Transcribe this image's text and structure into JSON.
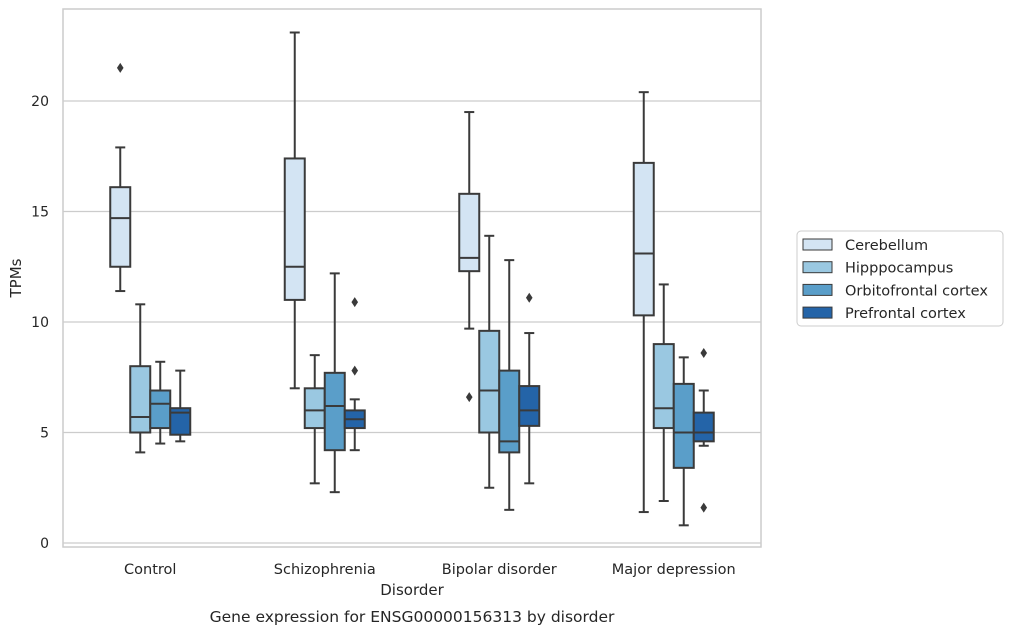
{
  "chart_data": {
    "type": "box",
    "title": "Gene expression for ENSG00000156313 by disorder",
    "xlabel": "Disorder",
    "ylabel": "TPMs",
    "categories": [
      "Control",
      "Schizophrenia",
      "Bipolar disorder",
      "Major depression"
    ],
    "yticks": [
      0,
      5,
      10,
      15,
      20
    ],
    "ylim": [
      -0.3,
      24.2
    ],
    "grid": "horizontal",
    "legend_position": "right",
    "series": [
      {
        "name": "Cerebellum",
        "color": "#d3e4f3",
        "boxes": [
          {
            "whisker_low": 11.4,
            "q1": 12.5,
            "median": 14.7,
            "q3": 16.1,
            "whisker_high": 17.9,
            "outliers": [
              21.5
            ]
          },
          {
            "whisker_low": 7.0,
            "q1": 11.0,
            "median": 12.5,
            "q3": 17.4,
            "whisker_high": 23.1,
            "outliers": []
          },
          {
            "whisker_low": 9.7,
            "q1": 12.3,
            "median": 12.9,
            "q3": 15.8,
            "whisker_high": 19.5,
            "outliers": [
              6.6
            ]
          },
          {
            "whisker_low": 1.4,
            "q1": 10.3,
            "median": 13.1,
            "q3": 17.2,
            "whisker_high": 20.4,
            "outliers": []
          }
        ]
      },
      {
        "name": "Hipppocampus",
        "color": "#9ac8e1",
        "boxes": [
          {
            "whisker_low": 4.1,
            "q1": 5.0,
            "median": 5.7,
            "q3": 8.0,
            "whisker_high": 10.8,
            "outliers": []
          },
          {
            "whisker_low": 2.7,
            "q1": 5.2,
            "median": 6.0,
            "q3": 7.0,
            "whisker_high": 8.5,
            "outliers": []
          },
          {
            "whisker_low": 2.5,
            "q1": 5.0,
            "median": 6.9,
            "q3": 9.6,
            "whisker_high": 13.9,
            "outliers": []
          },
          {
            "whisker_low": 1.9,
            "q1": 5.2,
            "median": 6.1,
            "q3": 9.0,
            "whisker_high": 11.7,
            "outliers": []
          }
        ]
      },
      {
        "name": "Orbitofrontal cortex",
        "color": "#5a9ec9",
        "boxes": [
          {
            "whisker_low": 4.5,
            "q1": 5.2,
            "median": 6.3,
            "q3": 6.9,
            "whisker_high": 8.2,
            "outliers": []
          },
          {
            "whisker_low": 2.3,
            "q1": 4.2,
            "median": 6.2,
            "q3": 7.7,
            "whisker_high": 12.2,
            "outliers": []
          },
          {
            "whisker_low": 1.5,
            "q1": 4.1,
            "median": 4.6,
            "q3": 7.8,
            "whisker_high": 12.8,
            "outliers": []
          },
          {
            "whisker_low": 0.8,
            "q1": 3.4,
            "median": 5.0,
            "q3": 7.2,
            "whisker_high": 8.4,
            "outliers": []
          }
        ]
      },
      {
        "name": "Prefrontal cortex",
        "color": "#2464a8",
        "boxes": [
          {
            "whisker_low": 4.6,
            "q1": 4.9,
            "median": 5.9,
            "q3": 6.1,
            "whisker_high": 7.8,
            "outliers": []
          },
          {
            "whisker_low": 4.2,
            "q1": 5.2,
            "median": 5.6,
            "q3": 6.0,
            "whisker_high": 6.5,
            "outliers": [
              7.8,
              10.9
            ]
          },
          {
            "whisker_low": 2.7,
            "q1": 5.3,
            "median": 6.0,
            "q3": 7.1,
            "whisker_high": 9.5,
            "outliers": [
              11.1
            ]
          },
          {
            "whisker_low": 4.4,
            "q1": 4.6,
            "median": 5.0,
            "q3": 5.9,
            "whisker_high": 6.9,
            "outliers": [
              8.6,
              1.6
            ]
          }
        ]
      }
    ]
  }
}
